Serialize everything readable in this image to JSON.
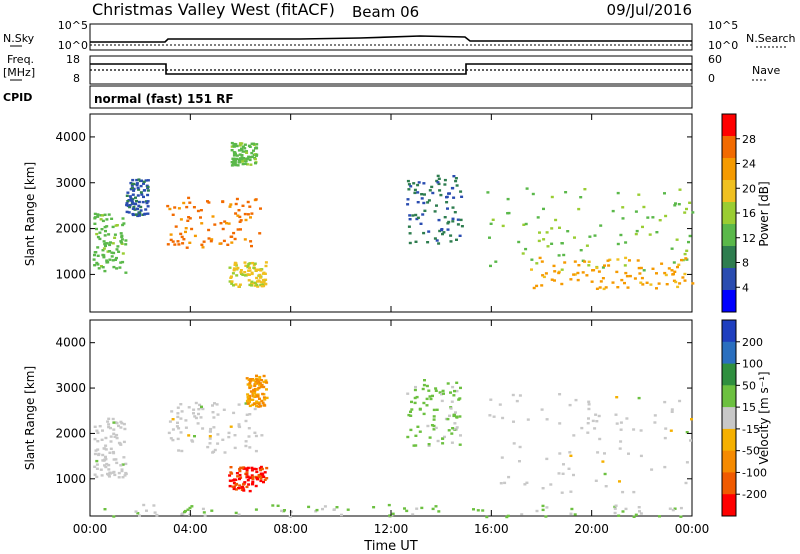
{
  "header": {
    "title": "Christmas Valley West (fitACF)",
    "beam": "Beam 06",
    "date": "09/Jul/2016"
  },
  "top_panels": {
    "nsky_label": "N.Sky",
    "nsearch_label": "N.Search",
    "noise_ticks": [
      "10^5",
      "10^0"
    ],
    "freq_label_1": "Freq.",
    "freq_label_2": "[MHz]",
    "freq_ticks": [
      "18",
      "8"
    ],
    "nave_label": "Nave",
    "nave_ticks": [
      "60",
      "0"
    ],
    "cpid_label": "CPID",
    "cpid_text": "normal (fast) 151 RF"
  },
  "colors": {
    "power_scale": [
      "#0000ff",
      "#2a4cb0",
      "#2e7d4f",
      "#5ab84a",
      "#9acd32",
      "#f0c020",
      "#f59a00",
      "#f26a00",
      "#ff0000"
    ],
    "velocity_scale": [
      "#1f3fbf",
      "#2a6fbf",
      "#2f8f3f",
      "#6cc040",
      "#c8c8c8",
      "#f5b000",
      "#f58a00",
      "#f05a00",
      "#ff0000"
    ],
    "frame": "#000000"
  },
  "chart_data": [
    {
      "type": "heatmap",
      "name": "power",
      "ylabel": "Slant Range [km]",
      "xlabel": "",
      "x_ticks": [
        "00:00",
        "04:00",
        "08:00",
        "12:00",
        "16:00",
        "20:00",
        "00:00"
      ],
      "x_range_hours": [
        0,
        24
      ],
      "y_ticks": [
        1000,
        2000,
        3000,
        4000
      ],
      "ylim": [
        180,
        4500
      ],
      "colorbar_label": "Power [dB]",
      "colorbar_ticks": [
        "28",
        "24",
        "20",
        "16",
        "12",
        "8",
        "4"
      ],
      "colorbar_range": [
        0,
        30
      ],
      "regions": [
        {
          "t0": 0.1,
          "t1": 1.4,
          "r0": 1050,
          "r1": 2350,
          "power": 12
        },
        {
          "t0": 1.4,
          "t1": 2.3,
          "r0": 2300,
          "r1": 3100,
          "power": 6
        },
        {
          "t0": 3.0,
          "t1": 6.8,
          "r0": 1600,
          "r1": 2700,
          "power": 24
        },
        {
          "t0": 5.5,
          "t1": 7.0,
          "r0": 750,
          "r1": 1300,
          "power": 17
        },
        {
          "t0": 5.6,
          "t1": 6.6,
          "r0": 3400,
          "r1": 3900,
          "power": 12
        },
        {
          "t0": 12.6,
          "t1": 14.8,
          "r0": 1700,
          "r1": 3200,
          "power": 7
        },
        {
          "t0": 15.8,
          "t1": 24.0,
          "r0": 1100,
          "r1": 2900,
          "power": 13
        },
        {
          "t0": 17.5,
          "t1": 24.0,
          "r0": 700,
          "r1": 1400,
          "power": 21
        }
      ]
    },
    {
      "type": "heatmap",
      "name": "velocity",
      "ylabel": "Slant Range [km]",
      "xlabel": "Time UT",
      "x_ticks": [
        "00:00",
        "04:00",
        "08:00",
        "12:00",
        "16:00",
        "20:00",
        "00:00"
      ],
      "x_range_hours": [
        0,
        24
      ],
      "y_ticks": [
        1000,
        2000,
        3000,
        4000
      ],
      "ylim": [
        180,
        4500
      ],
      "colorbar_label": "Velocity [m s⁻¹]",
      "colorbar_ticks": [
        "200",
        "100",
        "50",
        "15",
        "-15",
        "-50",
        "-100",
        "-200"
      ],
      "colorbar_range": [
        -250,
        250
      ],
      "regions": [
        {
          "t0": 0.1,
          "t1": 1.4,
          "r0": 1050,
          "r1": 2350,
          "velocity": 0
        },
        {
          "t0": 3.0,
          "t1": 6.8,
          "r0": 1600,
          "r1": 2700,
          "velocity": 0
        },
        {
          "t0": 5.5,
          "t1": 7.0,
          "r0": 750,
          "r1": 1300,
          "velocity": -200
        },
        {
          "t0": 6.2,
          "t1": 7.0,
          "r0": 2600,
          "r1": 3300,
          "velocity": -80
        },
        {
          "t0": 12.6,
          "t1": 14.8,
          "r0": 1700,
          "r1": 3200,
          "velocity": 40
        },
        {
          "t0": 15.8,
          "t1": 24.0,
          "r0": 700,
          "r1": 2900,
          "velocity": 0
        },
        {
          "t0": 0.0,
          "t1": 24.0,
          "r0": 180,
          "r1": 450,
          "velocity": 30
        }
      ]
    }
  ]
}
